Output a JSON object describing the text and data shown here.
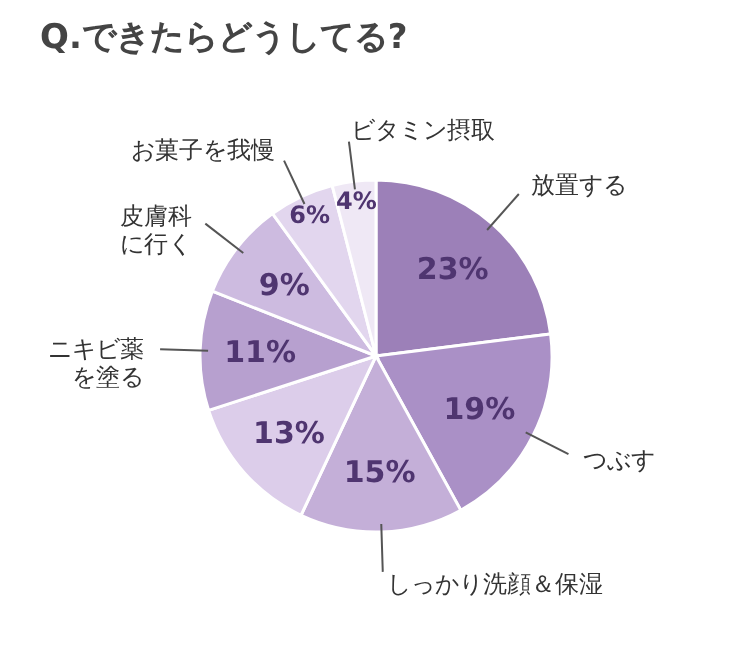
{
  "chart_data": {
    "type": "pie",
    "title": "Q.できたらどうしてる?",
    "categories": [
      "放置する",
      "つぶす",
      "しっかり洗顔＆保湿",
      null,
      "ニキビ薬を塗る",
      "皮膚科に行く",
      "お菓子を我慢",
      "ビタミン摂取"
    ],
    "values": [
      23,
      19,
      15,
      13,
      11,
      9,
      6,
      4
    ],
    "value_labels": [
      "23%",
      "19%",
      "15%",
      "13%",
      "11%",
      "9%",
      "6%",
      "4%"
    ],
    "colors": [
      "#9c80b8",
      "#aa90c6",
      "#c4afd8",
      "#dccdea",
      "#b7a0cf",
      "#cdbbe0",
      "#e2d6ee",
      "#efe8f5"
    ]
  }
}
